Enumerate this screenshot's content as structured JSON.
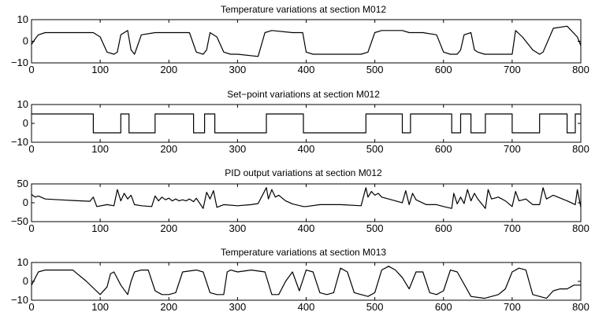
{
  "chart_data": [
    {
      "type": "line",
      "title": "Temperature variations at section  M012",
      "xlim": [
        0,
        800
      ],
      "ylim": [
        -10,
        10
      ],
      "xticks": [
        "0",
        "100",
        "200",
        "300",
        "400",
        "500",
        "600",
        "700",
        "800"
      ],
      "yticks": [
        "10",
        "0",
        "-10"
      ],
      "grid": false,
      "x": [
        0,
        5,
        10,
        20,
        40,
        60,
        90,
        100,
        110,
        120,
        125,
        130,
        140,
        145,
        150,
        160,
        180,
        190,
        200,
        230,
        240,
        250,
        255,
        260,
        270,
        280,
        290,
        300,
        330,
        340,
        350,
        380,
        395,
        400,
        410,
        430,
        450,
        480,
        490,
        500,
        510,
        530,
        540,
        550,
        570,
        590,
        600,
        610,
        620,
        625,
        630,
        640,
        645,
        650,
        660,
        680,
        695,
        700,
        705,
        715,
        730,
        740,
        745,
        760,
        780,
        795,
        800
      ],
      "series": [
        {
          "values": [
            -1.5,
            1,
            3,
            4,
            4,
            4,
            4,
            2,
            -5,
            -6,
            -5,
            3,
            5,
            -4,
            -6,
            3,
            4,
            4,
            4,
            4,
            -5,
            -6,
            -4,
            4,
            2,
            -5,
            -6,
            -6,
            -7,
            4,
            5,
            4,
            4,
            -5,
            -6,
            -6,
            -6,
            -6,
            -5,
            4,
            5,
            5,
            5,
            4,
            4,
            3,
            -5,
            -6,
            -6,
            -4,
            3,
            4,
            -4,
            -5,
            -6,
            -6,
            -6,
            -6,
            5,
            2,
            -4,
            -6,
            -5,
            6,
            7,
            2,
            -2
          ]
        }
      ]
    },
    {
      "type": "line",
      "title": "Set−point variations at section  M012",
      "xlim": [
        0,
        800
      ],
      "ylim": [
        -10,
        10
      ],
      "xticks": [
        "0",
        "100",
        "200",
        "300",
        "400",
        "500",
        "600",
        "700",
        "800"
      ],
      "yticks": [
        "10",
        "0",
        "-10"
      ],
      "grid": false,
      "x": [
        0,
        90,
        90,
        130,
        130,
        142,
        142,
        180,
        180,
        236,
        236,
        252,
        252,
        267,
        267,
        342,
        342,
        396,
        396,
        487,
        487,
        540,
        540,
        552,
        552,
        612,
        612,
        625,
        625,
        640,
        640,
        661,
        661,
        700,
        700,
        740,
        740,
        780,
        780,
        792,
        792,
        800
      ],
      "series": [
        {
          "values": [
            5,
            5,
            -5,
            -5,
            5,
            5,
            -5,
            -5,
            5,
            5,
            -5,
            -5,
            5,
            5,
            -5,
            -5,
            5,
            5,
            -5,
            -5,
            5,
            5,
            -5,
            -5,
            5,
            5,
            -5,
            -5,
            5,
            5,
            -5,
            -5,
            5,
            5,
            -5,
            -5,
            5,
            5,
            -5,
            -5,
            5,
            5
          ]
        }
      ]
    },
    {
      "type": "line",
      "title": "PID output variations at section  M012",
      "xlim": [
        0,
        800
      ],
      "ylim": [
        -50,
        50
      ],
      "xticks": [
        "0",
        "100",
        "200",
        "300",
        "400",
        "500",
        "600",
        "700",
        "800"
      ],
      "yticks": [
        "50",
        "0",
        "-50"
      ],
      "grid": false,
      "x": [
        0,
        5,
        10,
        20,
        40,
        60,
        85,
        90,
        95,
        110,
        120,
        125,
        130,
        135,
        140,
        145,
        150,
        160,
        175,
        180,
        185,
        190,
        195,
        200,
        205,
        210,
        215,
        220,
        225,
        230,
        236,
        240,
        250,
        255,
        260,
        265,
        270,
        280,
        300,
        320,
        330,
        342,
        345,
        350,
        355,
        360,
        370,
        380,
        396,
        400,
        420,
        450,
        480,
        487,
        490,
        495,
        500,
        505,
        510,
        520,
        530,
        540,
        545,
        550,
        555,
        560,
        575,
        590,
        600,
        612,
        615,
        620,
        625,
        630,
        635,
        640,
        645,
        650,
        661,
        665,
        670,
        680,
        690,
        700,
        705,
        710,
        720,
        730,
        740,
        745,
        750,
        760,
        780,
        792,
        795,
        800
      ],
      "series": [
        {
          "values": [
            22,
            15,
            18,
            10,
            8,
            6,
            4,
            15,
            -10,
            -5,
            -8,
            35,
            5,
            25,
            10,
            20,
            -5,
            -8,
            -10,
            18,
            5,
            15,
            8,
            12,
            5,
            10,
            5,
            8,
            5,
            10,
            3,
            12,
            -15,
            28,
            10,
            32,
            -12,
            -5,
            -8,
            -5,
            -2,
            40,
            10,
            35,
            15,
            20,
            5,
            -3,
            -10,
            -10,
            -5,
            -5,
            -8,
            40,
            15,
            30,
            20,
            25,
            15,
            10,
            5,
            0,
            32,
            -5,
            25,
            8,
            -5,
            -5,
            -10,
            -15,
            25,
            -3,
            15,
            -2,
            35,
            5,
            25,
            10,
            -15,
            35,
            10,
            15,
            5,
            -10,
            30,
            5,
            10,
            -5,
            -5,
            40,
            10,
            20,
            5,
            -5,
            35,
            -12
          ]
        }
      ]
    },
    {
      "type": "line",
      "title": "Temperature variations at section  M013",
      "xlim": [
        0,
        800
      ],
      "ylim": [
        -10,
        10
      ],
      "xticks": [
        "0",
        "100",
        "200",
        "300",
        "400",
        "500",
        "600",
        "700",
        "800"
      ],
      "yticks": [
        "10",
        "0",
        "-10"
      ],
      "grid": false,
      "x": [
        0,
        10,
        20,
        40,
        60,
        80,
        100,
        110,
        115,
        120,
        130,
        140,
        145,
        150,
        160,
        170,
        180,
        190,
        200,
        210,
        220,
        240,
        250,
        260,
        270,
        280,
        285,
        290,
        300,
        320,
        340,
        350,
        360,
        370,
        380,
        390,
        400,
        410,
        420,
        430,
        440,
        450,
        460,
        470,
        480,
        490,
        500,
        510,
        520,
        530,
        540,
        550,
        560,
        570,
        580,
        590,
        600,
        610,
        620,
        640,
        660,
        670,
        680,
        690,
        700,
        710,
        720,
        730,
        740,
        750,
        760,
        770,
        780,
        790,
        800
      ],
      "series": [
        {
          "values": [
            -2,
            5,
            6,
            6,
            6,
            0,
            -7,
            -3,
            4,
            5,
            -2,
            -7,
            0,
            5,
            6,
            6,
            -5,
            -7,
            -7,
            -6,
            5,
            6,
            5,
            -6,
            -7,
            -7,
            5,
            6,
            5,
            6,
            5,
            -7,
            -7,
            0,
            5,
            -5,
            6,
            5,
            -6,
            -7,
            -6,
            7,
            5,
            -6,
            -7,
            -8,
            -6,
            6,
            8,
            6,
            2,
            -4,
            5,
            5,
            -6,
            -7,
            -5,
            6,
            5,
            -8,
            -9,
            -8,
            -7,
            -4,
            5,
            7,
            6,
            -7,
            -8,
            -9,
            -5,
            -4,
            -4,
            -2,
            -2
          ]
        }
      ]
    }
  ]
}
